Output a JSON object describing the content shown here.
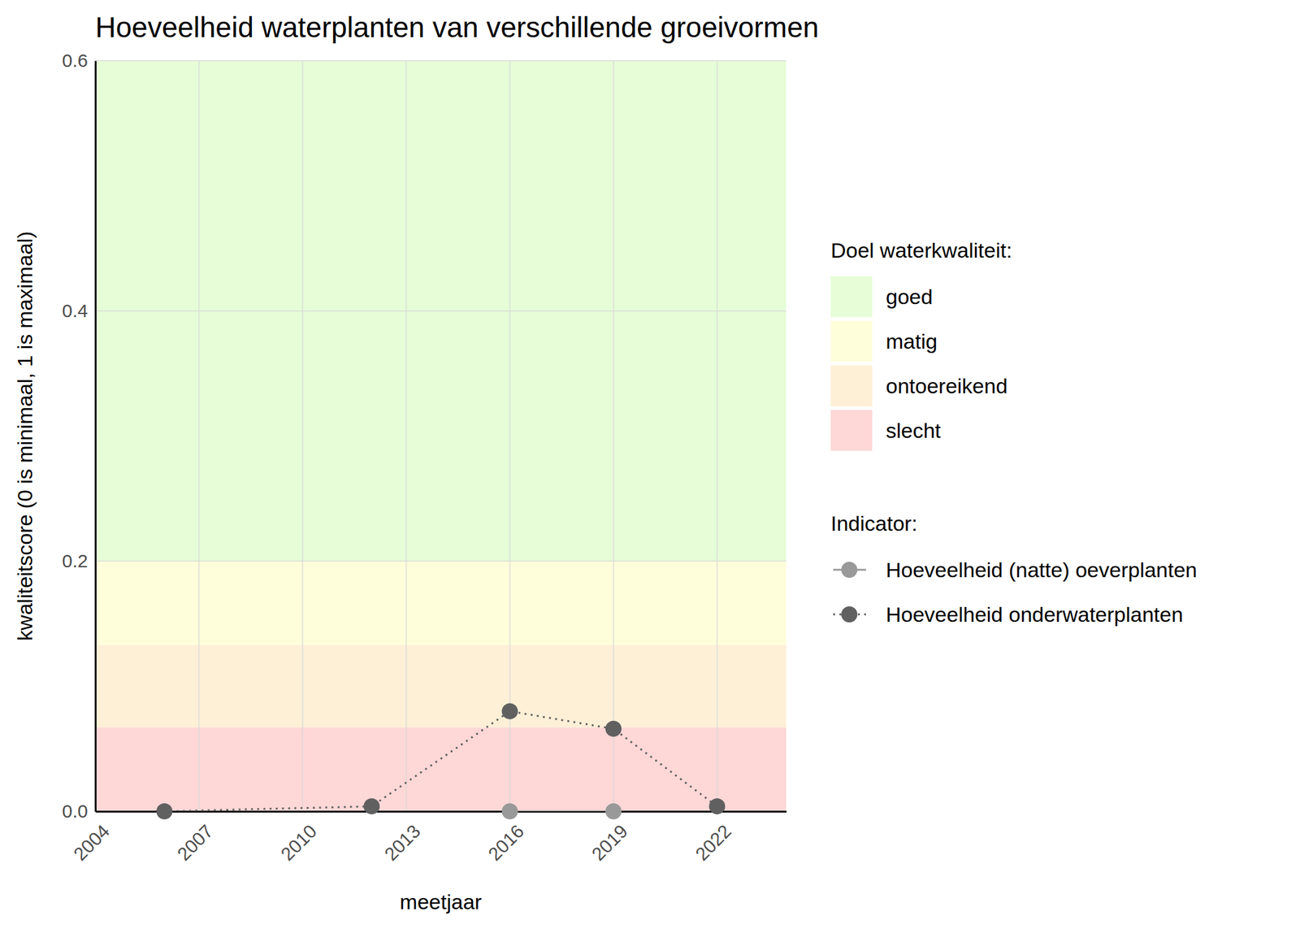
{
  "chart_data": {
    "type": "line",
    "title": "Hoeveelheid waterplanten van verschillende groeivormen",
    "x_label": "meetjaar",
    "y_label": "kwaliteitscore (0 is minimaal, 1 is maximaal)",
    "x": [
      2006,
      2012,
      2016,
      2019,
      2022
    ],
    "series": [
      {
        "name": "Hoeveelheid (natte) oeverplanten",
        "color": "#999999",
        "marker": "circle",
        "line_style": "solid",
        "values": [
          null,
          null,
          0,
          0,
          null
        ]
      },
      {
        "name": "Hoeveelheid onderwaterplanten",
        "color": "#606060",
        "marker": "circle",
        "line_style": "dotted",
        "values": [
          0,
          0.004,
          0.08,
          0.066,
          0.004
        ]
      }
    ],
    "bands_title": "Doel waterkwaliteit:",
    "bands": [
      {
        "name": "goed",
        "color": "#e6fdd7",
        "range": [
          0.2,
          1
        ]
      },
      {
        "name": "matig",
        "color": "#fefedb",
        "range": [
          0.133,
          0.2
        ]
      },
      {
        "name": "ontoereikend",
        "color": "#fdf0d6",
        "range": [
          0.067,
          0.133
        ]
      },
      {
        "name": "slecht",
        "color": "#fed7d7",
        "range": [
          0,
          0.067
        ]
      }
    ],
    "legend_title": "Indicator:",
    "xlim": [
      2004,
      2024
    ],
    "xticks": [
      2004,
      2007,
      2010,
      2013,
      2016,
      2019,
      2022
    ],
    "ylim": [
      0,
      0.6
    ],
    "yticks": [
      {
        "value": 0,
        "label": "0.0"
      },
      0.2,
      0.4,
      0.6
    ],
    "grid": true
  }
}
